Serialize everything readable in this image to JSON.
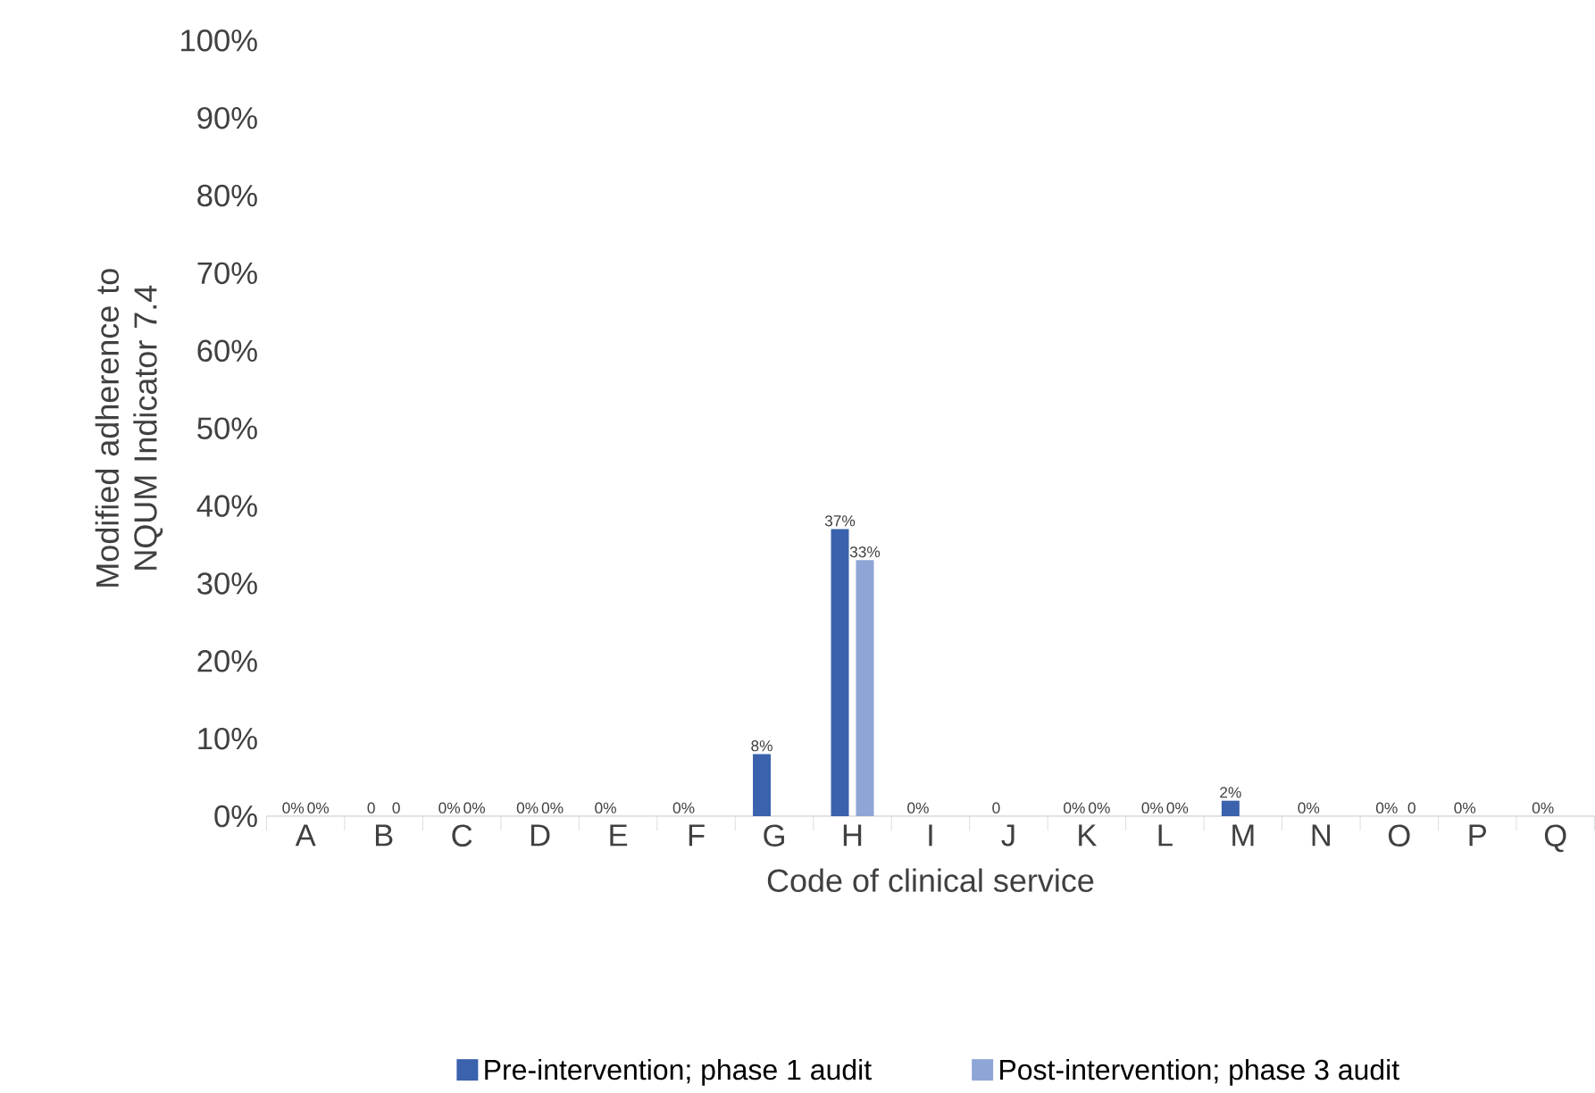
{
  "chart_data": {
    "type": "bar",
    "xlabel": "Code of clinical service",
    "ylabel": "Modified adherence to NQUM Indicator 7.4",
    "categories": [
      "A",
      "B",
      "C",
      "D",
      "E",
      "F",
      "G",
      "H",
      "I",
      "J",
      "K",
      "L",
      "M",
      "N",
      "O",
      "P",
      "Q"
    ],
    "series": [
      {
        "name": "Pre-intervention; phase 1 audit",
        "color": "#3a62ad",
        "values": [
          0,
          0,
          0,
          0,
          0,
          0,
          8,
          37,
          0,
          0,
          0,
          0,
          2,
          0,
          0,
          0,
          0
        ],
        "value_labels": [
          "0%",
          "0",
          "0%",
          "0%",
          "0%",
          "0%",
          "8%",
          "37%",
          "0%",
          "0",
          "0%",
          "0%",
          "2%",
          "0%",
          "0%",
          "0%",
          "0%"
        ]
      },
      {
        "name": "Post-intervention; phase 3 audit",
        "color": "#8ea5d6",
        "values": [
          0,
          0,
          0,
          0,
          null,
          null,
          null,
          33,
          null,
          null,
          0,
          0,
          null,
          null,
          0,
          null,
          null
        ],
        "value_labels": [
          "0%",
          "0",
          "0%",
          "0%",
          null,
          null,
          null,
          "33%",
          null,
          null,
          "0%",
          "0%",
          null,
          null,
          "0",
          null,
          null
        ]
      }
    ],
    "ylim": [
      0,
      100
    ],
    "yticks": [
      {
        "value": 0,
        "label": "0%"
      },
      {
        "value": 10,
        "label": "10%"
      },
      {
        "value": 20,
        "label": "20%"
      },
      {
        "value": 30,
        "label": "30%"
      },
      {
        "value": 40,
        "label": "40%"
      },
      {
        "value": 50,
        "label": "50%"
      },
      {
        "value": 60,
        "label": "60%"
      },
      {
        "value": 70,
        "label": "70%"
      },
      {
        "value": 80,
        "label": "80%"
      },
      {
        "value": 90,
        "label": "90%"
      },
      {
        "value": 100,
        "label": "100%"
      }
    ],
    "grid": false,
    "legend": "bottom"
  }
}
